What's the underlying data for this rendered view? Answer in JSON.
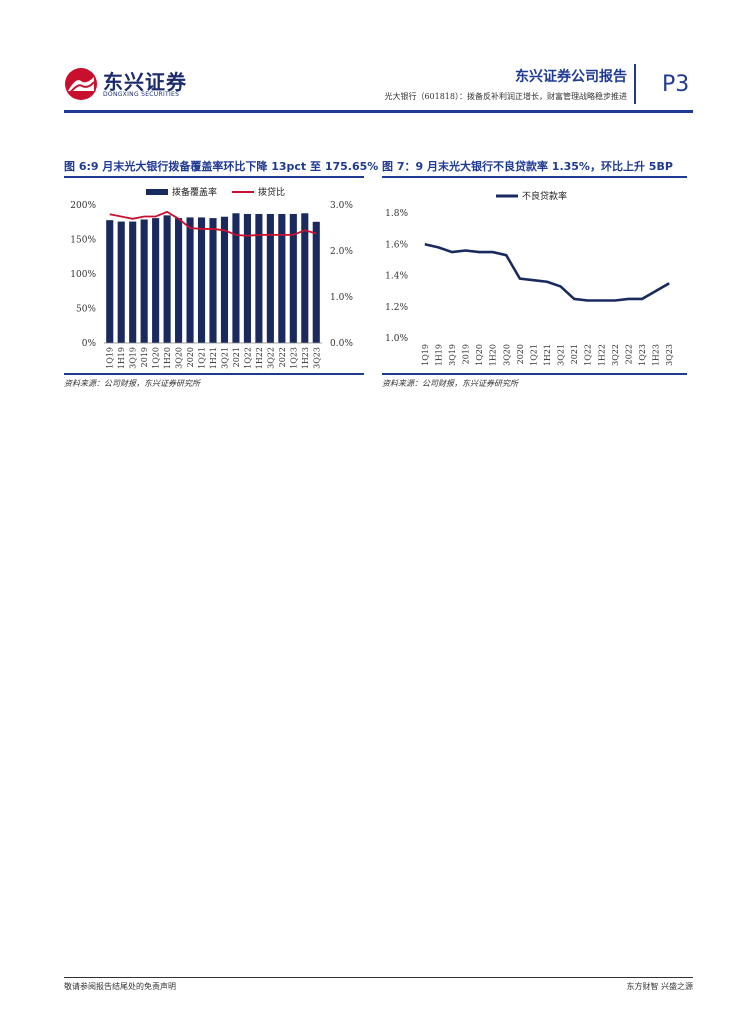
{
  "header": {
    "logo_cn": "东兴证券",
    "logo_en": "DONGXING SECURITIES",
    "report_title": "东兴证券公司报告",
    "report_subtitle": "光大银行（601818）：拨备反补利润正增长，财富管理战略稳步推进",
    "page_number": "P3",
    "brand_color": "#1f3a93",
    "logo_red": "#c8102e"
  },
  "figure6": {
    "title": "图 6:9 月末光大银行拨备覆盖率环比下降 13pct 至 175.65%",
    "source": "资料来源：公司财报，东兴证券研究所"
  },
  "figure7": {
    "title": "图 7：9 月末光大银行不良贷款率 1.35%，环比上升 5BP",
    "source": "资料来源：公司财报，东兴证券研究所"
  },
  "chart_data": [
    {
      "type": "bar",
      "title": "图 6:9 月末光大银行拨备覆盖率环比下降 13pct 至 175.65%",
      "categories": [
        "1Q19",
        "1H19",
        "3Q19",
        "2019",
        "1Q20",
        "1H20",
        "3Q20",
        "2020",
        "1Q21",
        "1H21",
        "3Q21",
        "2021",
        "1Q22",
        "1H22",
        "3Q22",
        "2022",
        "1Q23",
        "1H23",
        "3Q23"
      ],
      "series": [
        {
          "name": "拨备覆盖率",
          "axis": "left",
          "kind": "bar",
          "color": "#1a2a5e",
          "values": [
            178,
            176,
            176,
            179,
            181,
            185,
            181,
            182,
            182,
            181,
            183,
            188,
            187,
            187,
            187,
            187,
            187,
            188,
            175.65
          ]
        },
        {
          "name": "拨贷比",
          "axis": "right",
          "kind": "line",
          "color": "#c8102e",
          "values": [
            2.8,
            2.75,
            2.7,
            2.75,
            2.75,
            2.85,
            2.7,
            2.5,
            2.48,
            2.48,
            2.45,
            2.35,
            2.33,
            2.35,
            2.35,
            2.35,
            2.35,
            2.45,
            2.38
          ]
        }
      ],
      "y_left": {
        "min": 0,
        "max": 200,
        "ticks": [
          "0%",
          "50%",
          "100%",
          "150%",
          "200%"
        ]
      },
      "y_right": {
        "min": 0,
        "max": 3,
        "ticks": [
          "0.0%",
          "1.0%",
          "2.0%",
          "3.0%"
        ]
      },
      "legend": "top"
    },
    {
      "type": "line",
      "title": "图 7：9 月末光大银行不良贷款率 1.35%，环比上升 5BP",
      "categories": [
        "1Q19",
        "1H19",
        "3Q19",
        "2019",
        "1Q20",
        "1H20",
        "3Q20",
        "2020",
        "1Q21",
        "1H21",
        "3Q21",
        "2021",
        "1Q22",
        "1H22",
        "3Q22",
        "2022",
        "1Q23",
        "1H23",
        "3Q23"
      ],
      "series": [
        {
          "name": "不良贷款率",
          "color": "#1a2a5e",
          "values": [
            1.6,
            1.58,
            1.55,
            1.56,
            1.55,
            1.55,
            1.53,
            1.38,
            1.37,
            1.36,
            1.33,
            1.25,
            1.24,
            1.24,
            1.24,
            1.25,
            1.25,
            1.3,
            1.35
          ]
        }
      ],
      "y": {
        "min": 1.0,
        "max": 1.8,
        "ticks": [
          "1.0%",
          "1.2%",
          "1.4%",
          "1.6%",
          "1.8%"
        ]
      },
      "legend": "top"
    }
  ],
  "footer": {
    "left": "敬请参阅报告结尾处的免责声明",
    "right": "东方财智  兴盛之源"
  }
}
